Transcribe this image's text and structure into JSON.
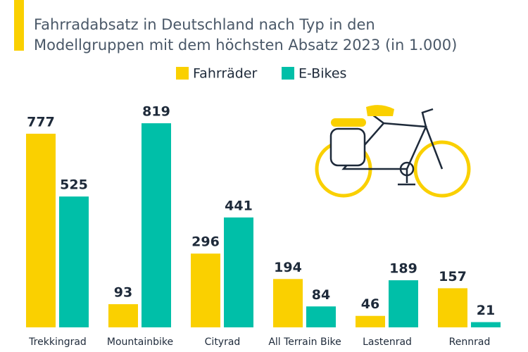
{
  "chart_data": {
    "type": "bar",
    "subtitle": [
      "Fahrradabsatz in Deutschland nach Typ in den",
      "Modellgruppen mit dem höchsten Absatz 2023 (in 1.000)"
    ],
    "categories": [
      "Trekkingrad",
      "Mountainbike",
      "Cityrad",
      "All Terrain Bike",
      "Lastenrad",
      "Rennrad"
    ],
    "series": [
      {
        "name": "Fahrräder",
        "color": "#fad000",
        "values": [
          777,
          93,
          296,
          194,
          46,
          157
        ]
      },
      {
        "name": "E-Bikes",
        "color": "#00bfa8",
        "values": [
          525,
          819,
          441,
          84,
          189,
          21
        ]
      }
    ]
  }
}
